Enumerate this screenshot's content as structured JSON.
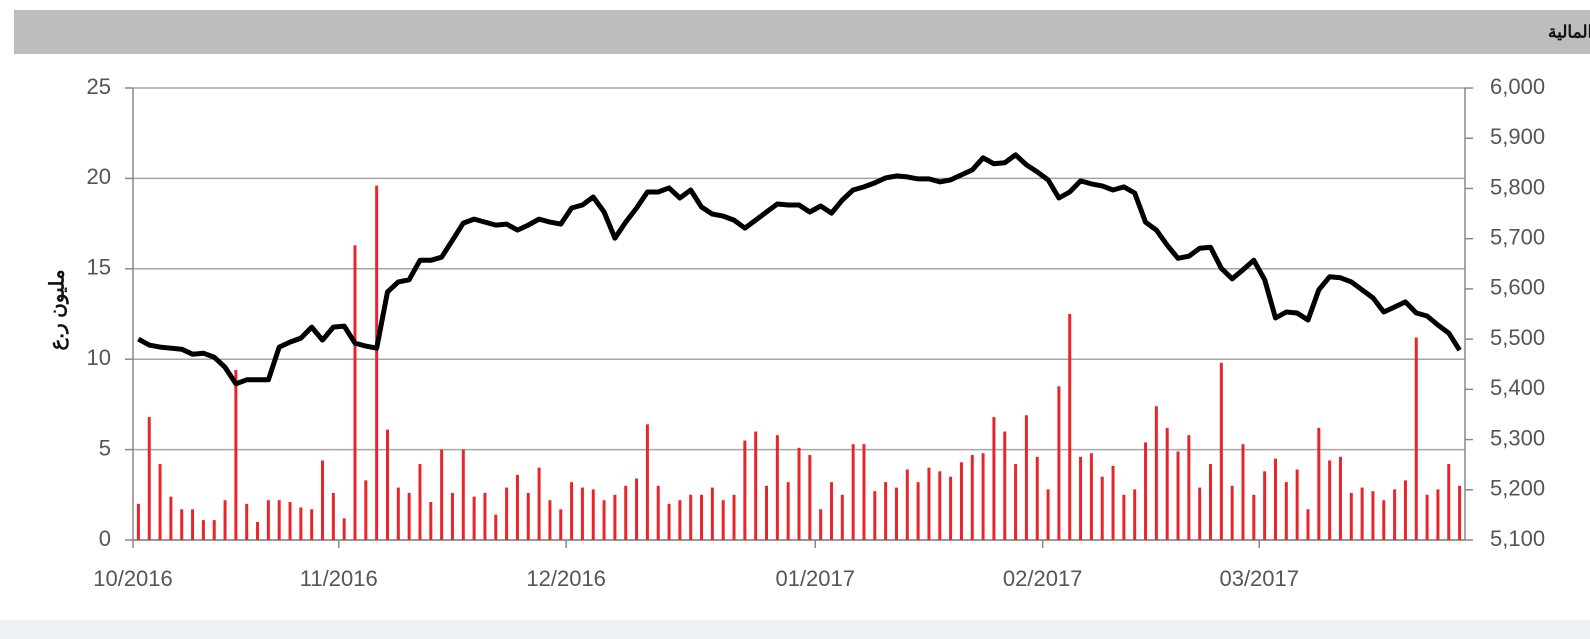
{
  "chart_data": {
    "type": "bar_line",
    "title": "مؤشر سوق مسقط للأوراق المالية",
    "y_label": "مليون ر.ع",
    "categories": [
      "10/2016",
      null,
      null,
      null,
      null,
      null,
      null,
      null,
      null,
      null,
      null,
      null,
      null,
      null,
      null,
      null,
      null,
      null,
      null,
      "11/2016",
      null,
      null,
      null,
      null,
      null,
      null,
      null,
      null,
      null,
      null,
      null,
      null,
      null,
      null,
      null,
      null,
      null,
      null,
      null,
      null,
      "12/2016",
      null,
      null,
      null,
      null,
      null,
      null,
      null,
      null,
      null,
      null,
      null,
      null,
      null,
      null,
      null,
      null,
      null,
      null,
      null,
      null,
      null,
      null,
      "01/2017",
      null,
      null,
      null,
      null,
      null,
      null,
      null,
      null,
      null,
      null,
      null,
      null,
      null,
      null,
      null,
      null,
      null,
      null,
      null,
      null,
      "02/2017",
      null,
      null,
      null,
      null,
      null,
      null,
      null,
      null,
      null,
      null,
      null,
      null,
      null,
      null,
      null,
      null,
      null,
      null,
      null,
      "03/2017",
      null,
      null,
      null,
      null,
      null,
      null,
      null,
      null,
      null,
      null,
      null,
      null,
      null,
      null,
      null,
      null,
      null,
      null
    ],
    "series": [
      {
        "type": "bar",
        "color": "#e8262a",
        "values": [
          2.0,
          6.8,
          4.2,
          2.4,
          1.7,
          1.7,
          1.1,
          1.1,
          2.2,
          9.4,
          2.0,
          1.0,
          2.2,
          2.2,
          2.1,
          1.8,
          1.7,
          4.4,
          2.6,
          1.2,
          16.3,
          3.3,
          19.6,
          6.1,
          2.9,
          2.6,
          4.2,
          2.1,
          5.0,
          2.6,
          5.0,
          2.4,
          2.6,
          1.4,
          2.9,
          3.6,
          2.6,
          4.0,
          2.2,
          1.7,
          3.2,
          2.9,
          2.8,
          2.2,
          2.5,
          3.0,
          3.4,
          6.4,
          3.0,
          2.0,
          2.2,
          2.5,
          2.5,
          2.9,
          2.2,
          2.5,
          5.5,
          6.0,
          3.0,
          5.8,
          3.2,
          5.1,
          4.7,
          1.7,
          3.2,
          2.5,
          5.3,
          5.3,
          2.7,
          3.2,
          2.9,
          3.9,
          3.2,
          4.0,
          3.8,
          3.5,
          4.3,
          4.7,
          4.8,
          6.8,
          6.0,
          4.2,
          6.9,
          4.6,
          2.8,
          8.5,
          12.5,
          4.6,
          4.8,
          3.5,
          4.1,
          2.5,
          2.8,
          5.4,
          7.4,
          6.2,
          4.9,
          5.8,
          2.9,
          4.2,
          9.8,
          3.0,
          5.3,
          2.5,
          3.8,
          4.5,
          3.2,
          3.9,
          1.7,
          6.2,
          4.4,
          4.6,
          2.6,
          2.9,
          2.7,
          2.2,
          2.8,
          3.3,
          11.2,
          2.5,
          2.8,
          4.2,
          3.0
        ]
      },
      {
        "type": "line",
        "color": "#000000",
        "axis": "y2",
        "values": [
          5500,
          5488,
          5484,
          5482,
          5480,
          5470,
          5472,
          5464,
          5444,
          5411,
          5419,
          5419,
          5419,
          5484,
          5494,
          5502,
          5524,
          5498,
          5524,
          5526,
          5492,
          5486,
          5482,
          5594,
          5614,
          5618,
          5657,
          5657,
          5663,
          5697,
          5731,
          5739,
          5733,
          5727,
          5729,
          5717,
          5727,
          5739,
          5733,
          5729,
          5761,
          5767,
          5783,
          5753,
          5701,
          5733,
          5761,
          5793,
          5793,
          5801,
          5781,
          5797,
          5763,
          5749,
          5745,
          5737,
          5721,
          5737,
          5753,
          5769,
          5767,
          5767,
          5753,
          5765,
          5751,
          5777,
          5797,
          5803,
          5811,
          5821,
          5825,
          5823,
          5819,
          5819,
          5813,
          5817,
          5827,
          5837,
          5861,
          5849,
          5851,
          5867,
          5847,
          5833,
          5817,
          5781,
          5793,
          5815,
          5809,
          5805,
          5797,
          5803,
          5791,
          5733,
          5717,
          5687,
          5661,
          5665,
          5681,
          5683,
          5641,
          5620,
          5638,
          5657,
          5618,
          5542,
          5554,
          5552,
          5538,
          5598,
          5624,
          5622,
          5614,
          5598,
          5582,
          5554,
          5564,
          5574,
          5552,
          5546,
          5528,
          5512,
          5478
        ]
      }
    ],
    "ylim": [
      0,
      25
    ],
    "yticks": [
      0,
      5,
      10,
      15,
      20,
      25
    ],
    "y2lim": [
      5100,
      6000
    ],
    "y2ticks": [
      {
        "value": 5100,
        "label": "5,100"
      },
      {
        "value": 5200,
        "label": "5,200"
      },
      {
        "value": 5300,
        "label": "5,300"
      },
      {
        "value": 5400,
        "label": "5,400"
      },
      {
        "value": 5500,
        "label": "5,500"
      },
      {
        "value": 5600,
        "label": "5,600"
      },
      {
        "value": 5700,
        "label": "5,700"
      },
      {
        "value": 5800,
        "label": "5,800"
      },
      {
        "value": 5900,
        "label": "5,900"
      },
      {
        "value": 6000,
        "label": "6,000"
      }
    ],
    "grid": true
  }
}
